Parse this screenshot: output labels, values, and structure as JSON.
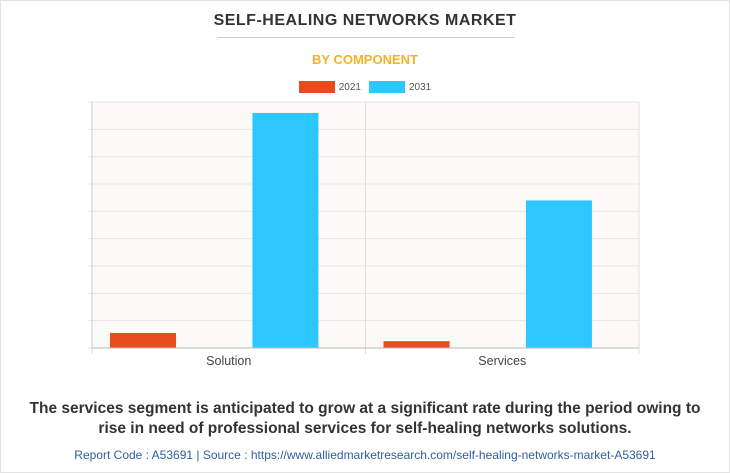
{
  "header": {
    "title": "SELF-HEALING NETWORKS MARKET",
    "subtitle": "BY COMPONENT"
  },
  "colors": {
    "series_2021": "#e84c1e",
    "series_2031": "#2ec6ff",
    "subtitle": "#f5b227",
    "plot_bg": "#fbfaf6"
  },
  "chart_data": {
    "type": "bar",
    "categories": [
      "Solution",
      "Services"
    ],
    "series": [
      {
        "name": "2021",
        "values": [
          5.5,
          2.5
        ]
      },
      {
        "name": "2031",
        "values": [
          86,
          54
        ]
      }
    ],
    "ylim": [
      0,
      90
    ],
    "grid": true,
    "legend_position": "top-center",
    "xlabel": "",
    "ylabel": ""
  },
  "caption": "The services segment is anticipated to grow at a significant rate during the period owing to rise in need of professional services for self-healing networks solutions.",
  "footer": "Report Code : A53691  |  Source : https://www.alliedmarketresearch.com/self-healing-networks-market-A53691"
}
